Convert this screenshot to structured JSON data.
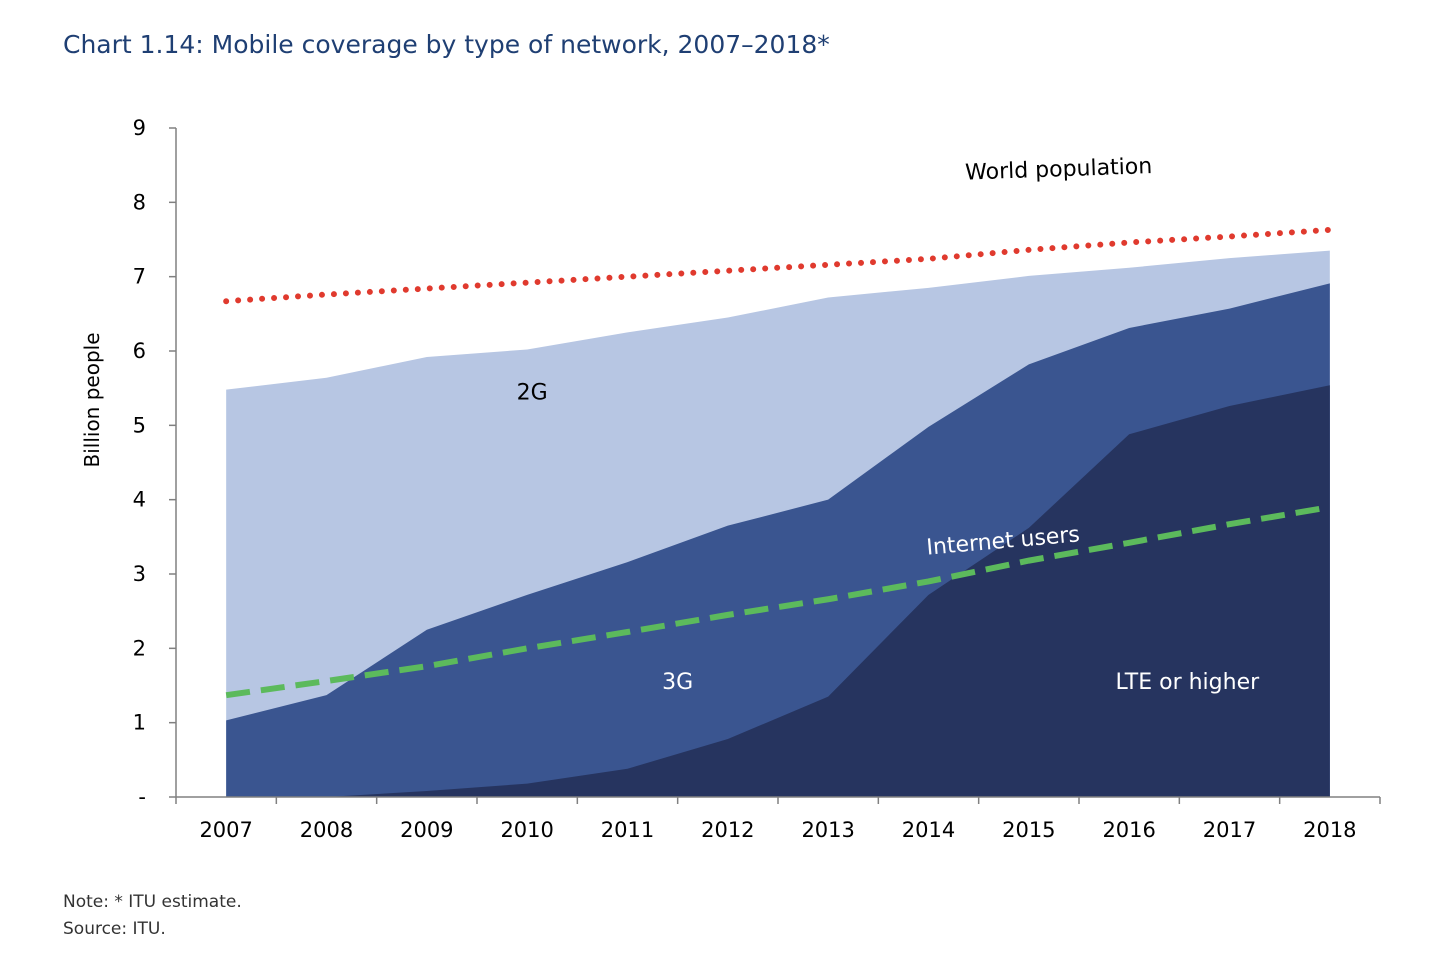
{
  "title": "Chart 1.14: Mobile coverage by type of network, 2007–2018*",
  "note": "Note: * ITU estimate.",
  "source": "Source: ITU.",
  "colors": {
    "title": "#1f3f73",
    "two_g": "#b7c6e3",
    "three_g": "#3a5590",
    "lte": "#26345f",
    "world_population": "#e03a2e",
    "internet_users": "#5cba5c",
    "axis": "#808080"
  },
  "chart_data": {
    "type": "area",
    "x": [
      "2007",
      "2008",
      "2009",
      "2010",
      "2011",
      "2012",
      "2013",
      "2014",
      "2015",
      "2016",
      "2017",
      "2018"
    ],
    "ylabel": "Billion people",
    "xlabel": "",
    "ylim": [
      0,
      9
    ],
    "yticks": [
      0,
      1,
      2,
      3,
      4,
      5,
      6,
      7,
      8,
      9
    ],
    "ytick_labels": [
      "-",
      "1",
      "2",
      "3",
      "4",
      "5",
      "6",
      "7",
      "8",
      "9"
    ],
    "grid": false,
    "series": [
      {
        "name": "2G",
        "kind": "area",
        "values": [
          5.48,
          5.64,
          5.92,
          6.02,
          6.25,
          6.45,
          6.72,
          6.85,
          7.01,
          7.12,
          7.25,
          7.35
        ]
      },
      {
        "name": "3G",
        "kind": "area",
        "values": [
          1.03,
          1.37,
          2.25,
          2.72,
          3.16,
          3.65,
          4.0,
          4.98,
          5.82,
          6.31,
          6.57,
          6.91
        ]
      },
      {
        "name": "LTE or higher",
        "kind": "area",
        "values": [
          0.0,
          0.0,
          0.08,
          0.18,
          0.38,
          0.78,
          1.35,
          2.72,
          3.62,
          4.88,
          5.26,
          5.54
        ]
      },
      {
        "name": "World population",
        "kind": "dotted-line",
        "values": [
          6.67,
          6.76,
          6.84,
          6.92,
          7.0,
          7.08,
          7.16,
          7.24,
          7.36,
          7.46,
          7.54,
          7.63
        ]
      },
      {
        "name": "Internet users",
        "kind": "dashed-line",
        "values": [
          1.37,
          1.56,
          1.76,
          2.0,
          2.22,
          2.45,
          2.66,
          2.9,
          3.18,
          3.42,
          3.67,
          3.9
        ]
      }
    ],
    "annotations": [
      {
        "text": "World population",
        "series": "World population"
      },
      {
        "text": "2G",
        "series": "2G"
      },
      {
        "text": "Internet users",
        "series": "Internet users"
      },
      {
        "text": "3G",
        "series": "3G"
      },
      {
        "text": "LTE or higher",
        "series": "LTE or higher"
      }
    ]
  }
}
